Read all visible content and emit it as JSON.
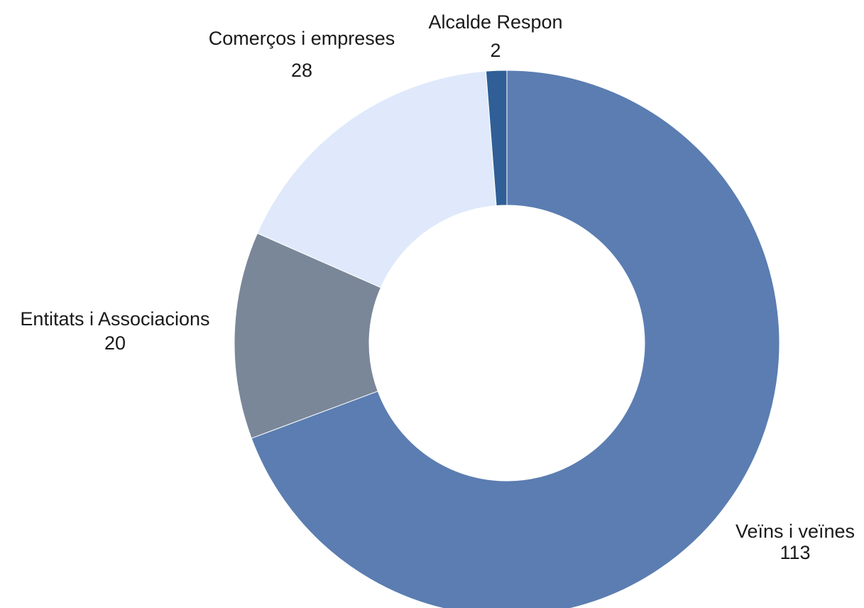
{
  "chart_data": {
    "type": "pie",
    "variant": "donut",
    "categories": [
      "Veïns i veïnes",
      "Entitats i Associacions",
      "Comerços i empreses",
      "Alcalde Respon"
    ],
    "values": [
      113,
      20,
      28,
      2
    ],
    "colors": [
      "#5b7db1",
      "#7a8799",
      "#dfe9fb",
      "#2f5f96"
    ],
    "legend": "none",
    "data_labels": "category-and-value"
  }
}
